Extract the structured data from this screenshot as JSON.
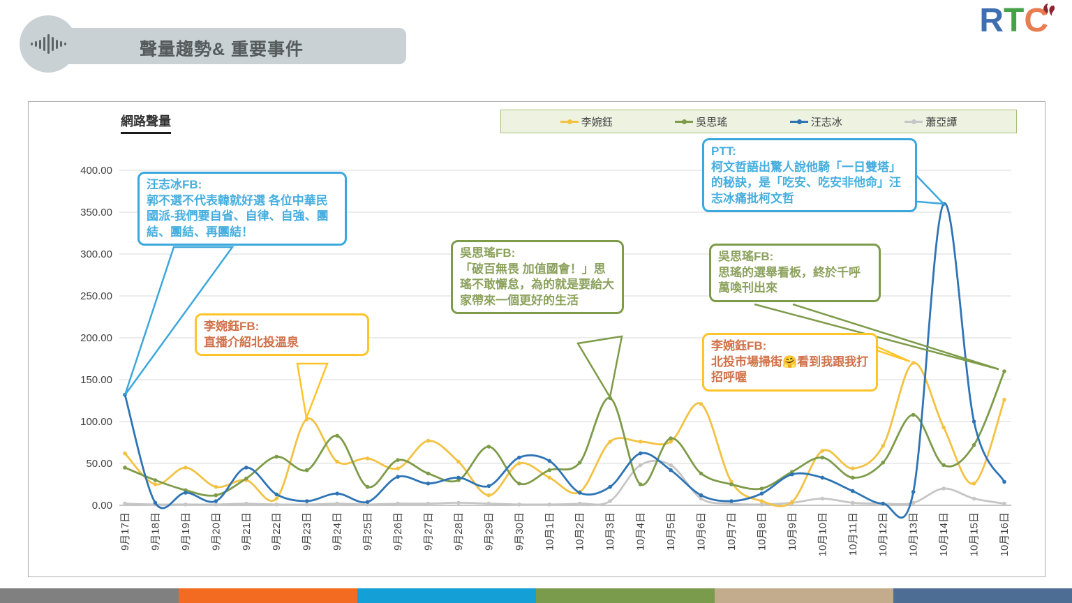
{
  "header": {
    "title": "聲量趨勢& 重要事件"
  },
  "logo": {
    "letters": [
      {
        "ch": "R",
        "color": "#3e6fb1"
      },
      {
        "ch": "T",
        "color": "#45a249"
      },
      {
        "ch": "C",
        "color": "#e97c50"
      }
    ],
    "flame_color": "#8e2430"
  },
  "panel": {
    "label": "網路聲量"
  },
  "chart_data": {
    "type": "line",
    "title": "網路聲量",
    "x": [
      "9月17日",
      "9月18日",
      "9月19日",
      "9月20日",
      "9月21日",
      "9月22日",
      "9月23日",
      "9月24日",
      "9月25日",
      "9月26日",
      "9月27日",
      "9月28日",
      "9月29日",
      "9月30日",
      "10月1日",
      "10月2日",
      "10月3日",
      "10月4日",
      "10月5日",
      "10月6日",
      "10月7日",
      "10月8日",
      "10月9日",
      "10月10日",
      "10月11日",
      "10月12日",
      "10月13日",
      "10月14日",
      "10月15日",
      "10月16日"
    ],
    "series": [
      {
        "name": "李婉鈺",
        "color": "#f2c243",
        "values": [
          62,
          25,
          45,
          22,
          30,
          8,
          103,
          52,
          56,
          44,
          77,
          52,
          12,
          50,
          33,
          16,
          76,
          76,
          76,
          121,
          28,
          5,
          4,
          65,
          44,
          71,
          170,
          93,
          26,
          126
        ]
      },
      {
        "name": "吳思瑤",
        "color": "#7d9b49",
        "values": [
          45,
          30,
          18,
          12,
          32,
          58,
          42,
          83,
          22,
          54,
          38,
          30,
          70,
          26,
          42,
          51,
          128,
          25,
          80,
          38,
          25,
          20,
          40,
          57,
          33,
          51,
          108,
          48,
          72,
          160
        ]
      },
      {
        "name": "汪志冰",
        "color": "#2e74b5",
        "values": [
          132,
          3,
          15,
          5,
          45,
          13,
          5,
          14,
          4,
          34,
          26,
          33,
          23,
          57,
          53,
          15,
          22,
          62,
          42,
          12,
          5,
          14,
          37,
          33,
          17,
          2,
          16,
          360,
          100,
          28
        ]
      },
      {
        "name": "蕭亞譚",
        "color": "#c6c6c6",
        "values": [
          2,
          1,
          1,
          1,
          2,
          1,
          1,
          2,
          1,
          2,
          2,
          3,
          2,
          1,
          1,
          2,
          5,
          48,
          48,
          8,
          2,
          1,
          3,
          8,
          3,
          2,
          3,
          20,
          8,
          2
        ]
      }
    ],
    "ylim": [
      0,
      400
    ],
    "ytick_step": 50,
    "ytick_decimals": 2,
    "grid": true,
    "legend_position": "top-right"
  },
  "callouts": [
    {
      "source": "汪志冰FB:",
      "text": "郭不選不代表韓就好選 各位中華民國派-我們要自省、自律、自強、團結、團結、再團結！"
    },
    {
      "source": "李婉鈺FB:",
      "text": "直播介紹北投溫泉"
    },
    {
      "source": "吳思瑤FB:",
      "text": "「破百無畏 加值國會！」思瑤不敢懈怠，為的就是要給大家帶來一個更好的生活"
    },
    {
      "source": "PTT:",
      "text": "柯文哲語出驚人說他騎「一日雙塔」的秘訣，是「吃安、吃安非他命」汪志冰痛批柯文哲"
    },
    {
      "source": "吳思瑤FB:",
      "text": "思瑤的選舉看板，終於千呼萬喚刊出來"
    },
    {
      "source": "李婉鈺FB:",
      "text": "北投市場掃街🤗看到我跟我打招呼喔"
    }
  ],
  "footer_bar": {
    "colors": [
      "#808080",
      "#f26b21",
      "#14a0d7",
      "#7a9a4c",
      "#c3ac8d",
      "#4e6d95"
    ]
  }
}
